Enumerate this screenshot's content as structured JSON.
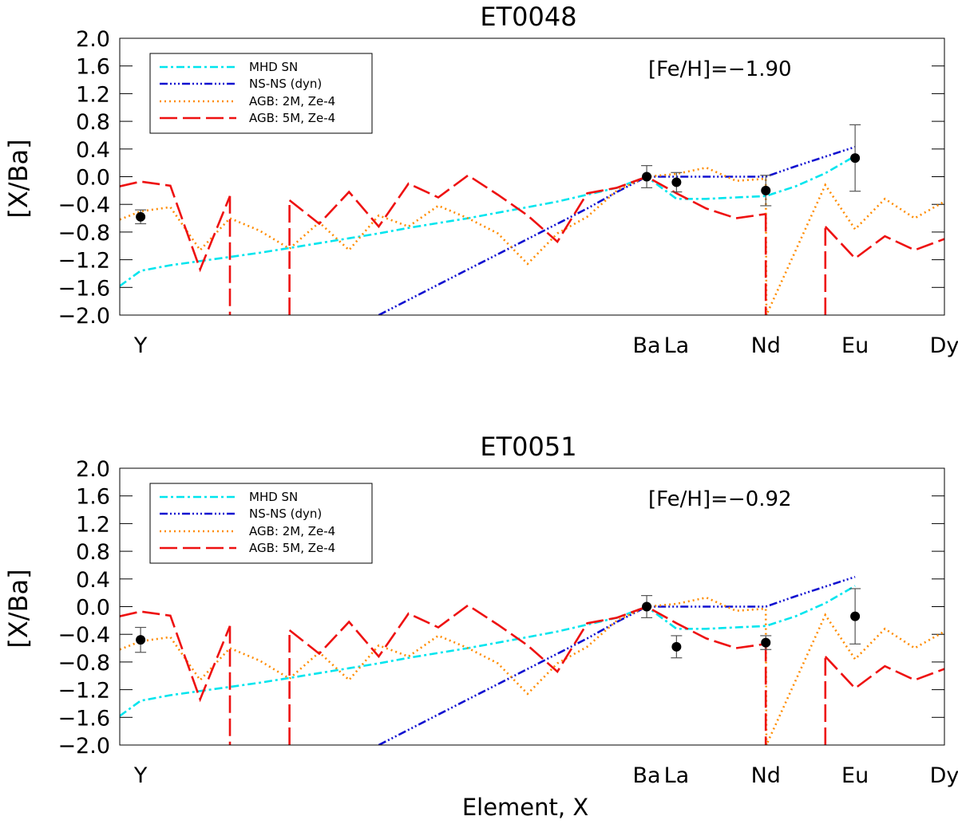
{
  "chart_data": [
    {
      "type": "line",
      "title": "ET0048",
      "ylabel": "[X/Ba]",
      "xlabel": "",
      "annotation": "[Fe/H]=−1.90",
      "ylim": [
        -2.0,
        2.0
      ],
      "yticks": [
        "2.0",
        "1.6",
        "1.2",
        "0.8",
        "0.4",
        "0.0",
        "−0.4",
        "−0.8",
        "−1.2",
        "−1.6",
        "−2.0"
      ],
      "xlim": [
        38.3,
        66.0
      ],
      "element_labels": [
        {
          "label": "Y",
          "z": 39
        },
        {
          "label": "Ba",
          "z": 56
        },
        {
          "label": "La",
          "z": 57
        },
        {
          "label": "Nd",
          "z": 60
        },
        {
          "label": "Eu",
          "z": 63
        },
        {
          "label": "Dy",
          "z": 66
        }
      ],
      "series": [
        {
          "name": "MHD SN",
          "color": "#00e5ee",
          "dash": "10 4 3 4",
          "x": [
            38.3,
            39,
            40,
            41,
            42,
            43,
            44,
            45,
            46,
            47,
            48,
            49,
            50,
            51,
            52,
            53,
            54,
            55,
            56,
            57,
            58,
            59,
            60,
            61,
            62,
            63
          ],
          "y": [
            -1.58,
            -1.36,
            -1.28,
            -1.22,
            -1.16,
            -1.1,
            -1.03,
            -0.96,
            -0.89,
            -0.82,
            -0.74,
            -0.67,
            -0.6,
            -0.52,
            -0.44,
            -0.36,
            -0.26,
            -0.16,
            0.0,
            -0.32,
            -0.32,
            -0.3,
            -0.28,
            -0.14,
            0.05,
            0.3
          ]
        },
        {
          "name": "NS-NS (dyn)",
          "color": "#1010d0",
          "dash": "10 3 2 3 2 3 2 3",
          "x": [
            47.0,
            48,
            49,
            50,
            51,
            52,
            53,
            54,
            55,
            56,
            57,
            58,
            59,
            60,
            61,
            62,
            63
          ],
          "y": [
            -2.0,
            -1.78,
            -1.56,
            -1.34,
            -1.12,
            -0.9,
            -0.68,
            -0.46,
            -0.22,
            0.0,
            0.0,
            0.0,
            0.0,
            0.0,
            0.15,
            0.29,
            0.43
          ]
        },
        {
          "name": "AGB: 2M, Ze-4",
          "color": "#ff8c00",
          "dash": "2 4",
          "x": [
            38.3,
            39,
            40,
            41,
            42,
            43,
            44,
            45,
            46,
            47,
            48,
            49,
            50,
            51,
            52,
            53,
            54,
            55,
            56,
            57,
            58,
            59,
            60,
            60.02,
            62,
            63,
            64,
            65,
            66
          ],
          "y": [
            -0.62,
            -0.5,
            -0.44,
            -1.06,
            -0.6,
            -0.78,
            -1.04,
            -0.66,
            -1.06,
            -0.56,
            -0.72,
            -0.42,
            -0.6,
            -0.82,
            -1.26,
            -0.82,
            -0.58,
            -0.2,
            0.0,
            0.04,
            0.13,
            -0.06,
            -0.03,
            -2.0,
            -0.12,
            -0.76,
            -0.32,
            -0.6,
            -0.36
          ]
        },
        {
          "name": "AGB: 5M, Ze-4",
          "color": "#ee1111",
          "dash": "22 7",
          "segments": [
            {
              "x": [
                38.3,
                39,
                40,
                41,
                42
              ],
              "y": [
                -0.14,
                -0.07,
                -0.13,
                -1.34,
                -0.28
              ]
            },
            {
              "x": [
                42,
                42
              ],
              "y": [
                -0.28,
                -2.0
              ]
            },
            {
              "x": [
                44,
                44
              ],
              "y": [
                -2.0,
                -0.34
              ]
            },
            {
              "x": [
                44,
                45,
                46,
                47,
                48,
                49,
                50,
                51,
                52,
                53,
                54,
                55,
                56,
                57,
                58,
                59,
                60
              ],
              "y": [
                -0.34,
                -0.68,
                -0.22,
                -0.72,
                -0.1,
                -0.3,
                0.02,
                -0.26,
                -0.56,
                -0.94,
                -0.24,
                -0.16,
                0.0,
                -0.24,
                -0.46,
                -0.6,
                -0.54
              ]
            },
            {
              "x": [
                60,
                60
              ],
              "y": [
                -0.54,
                -2.0
              ]
            },
            {
              "x": [
                62,
                62
              ],
              "y": [
                -2.0,
                -0.72
              ]
            },
            {
              "x": [
                62,
                63,
                64,
                65,
                66
              ],
              "y": [
                -0.72,
                -1.18,
                -0.86,
                -1.06,
                -0.9
              ]
            }
          ]
        }
      ],
      "observations": [
        {
          "element": "Y",
          "z": 39,
          "value": -0.58,
          "error": 0.1
        },
        {
          "element": "Ba",
          "z": 56,
          "value": 0.0,
          "error": 0.16
        },
        {
          "element": "La",
          "z": 57,
          "value": -0.08,
          "error": 0.14
        },
        {
          "element": "Nd",
          "z": 60,
          "value": -0.2,
          "error": 0.22
        },
        {
          "element": "Eu",
          "z": 63,
          "value": 0.27,
          "error": 0.48
        }
      ]
    },
    {
      "type": "line",
      "title": "ET0051",
      "ylabel": "[X/Ba]",
      "xlabel": "Element, X",
      "annotation": "[Fe/H]=−0.92",
      "ylim": [
        -2.0,
        2.0
      ],
      "yticks": [
        "2.0",
        "1.6",
        "1.2",
        "0.8",
        "0.4",
        "0.0",
        "−0.4",
        "−0.8",
        "−1.2",
        "−1.6",
        "−2.0"
      ],
      "xlim": [
        38.3,
        66.0
      ],
      "element_labels": [
        {
          "label": "Y",
          "z": 39
        },
        {
          "label": "Ba",
          "z": 56
        },
        {
          "label": "La",
          "z": 57
        },
        {
          "label": "Nd",
          "z": 60
        },
        {
          "label": "Eu",
          "z": 63
        },
        {
          "label": "Dy",
          "z": 66
        }
      ],
      "series": [
        {
          "name": "MHD SN",
          "color": "#00e5ee",
          "dash": "10 4 3 4",
          "x": [
            38.3,
            39,
            40,
            41,
            42,
            43,
            44,
            45,
            46,
            47,
            48,
            49,
            50,
            51,
            52,
            53,
            54,
            55,
            56,
            57,
            58,
            59,
            60,
            61,
            62,
            63
          ],
          "y": [
            -1.58,
            -1.36,
            -1.28,
            -1.22,
            -1.16,
            -1.1,
            -1.03,
            -0.96,
            -0.89,
            -0.82,
            -0.74,
            -0.67,
            -0.6,
            -0.52,
            -0.44,
            -0.36,
            -0.26,
            -0.16,
            0.0,
            -0.32,
            -0.32,
            -0.3,
            -0.28,
            -0.14,
            0.05,
            0.3
          ]
        },
        {
          "name": "NS-NS (dyn)",
          "color": "#1010d0",
          "dash": "10 3 2 3 2 3 2 3",
          "x": [
            47.0,
            48,
            49,
            50,
            51,
            52,
            53,
            54,
            55,
            56,
            57,
            58,
            59,
            60,
            61,
            62,
            63
          ],
          "y": [
            -2.0,
            -1.78,
            -1.56,
            -1.34,
            -1.12,
            -0.9,
            -0.68,
            -0.46,
            -0.22,
            0.0,
            0.0,
            0.0,
            0.0,
            0.0,
            0.15,
            0.29,
            0.43
          ]
        },
        {
          "name": "AGB: 2M, Ze-4",
          "color": "#ff8c00",
          "dash": "2 4",
          "x": [
            38.3,
            39,
            40,
            41,
            42,
            43,
            44,
            45,
            46,
            47,
            48,
            49,
            50,
            51,
            52,
            53,
            54,
            55,
            56,
            57,
            58,
            59,
            60,
            60.02,
            62,
            63,
            64,
            65,
            66
          ],
          "y": [
            -0.62,
            -0.5,
            -0.44,
            -1.06,
            -0.6,
            -0.78,
            -1.04,
            -0.66,
            -1.06,
            -0.56,
            -0.72,
            -0.42,
            -0.6,
            -0.82,
            -1.26,
            -0.82,
            -0.58,
            -0.2,
            0.0,
            0.04,
            0.13,
            -0.06,
            -0.03,
            -2.0,
            -0.12,
            -0.76,
            -0.32,
            -0.6,
            -0.36
          ]
        },
        {
          "name": "AGB: 5M, Ze-4",
          "color": "#ee1111",
          "dash": "22 7",
          "segments": [
            {
              "x": [
                38.3,
                39,
                40,
                41,
                42
              ],
              "y": [
                -0.14,
                -0.07,
                -0.13,
                -1.34,
                -0.28
              ]
            },
            {
              "x": [
                42,
                42
              ],
              "y": [
                -0.28,
                -2.0
              ]
            },
            {
              "x": [
                44,
                44
              ],
              "y": [
                -2.0,
                -0.34
              ]
            },
            {
              "x": [
                44,
                45,
                46,
                47,
                48,
                49,
                50,
                51,
                52,
                53,
                54,
                55,
                56,
                57,
                58,
                59,
                60
              ],
              "y": [
                -0.34,
                -0.68,
                -0.22,
                -0.72,
                -0.1,
                -0.3,
                0.02,
                -0.26,
                -0.56,
                -0.94,
                -0.24,
                -0.16,
                0.0,
                -0.24,
                -0.46,
                -0.6,
                -0.54
              ]
            },
            {
              "x": [
                60,
                60
              ],
              "y": [
                -0.54,
                -2.0
              ]
            },
            {
              "x": [
                62,
                62
              ],
              "y": [
                -2.0,
                -0.72
              ]
            },
            {
              "x": [
                62,
                63,
                64,
                65,
                66
              ],
              "y": [
                -0.72,
                -1.18,
                -0.86,
                -1.06,
                -0.9
              ]
            }
          ]
        }
      ],
      "observations": [
        {
          "element": "Y",
          "z": 39,
          "value": -0.48,
          "error": 0.18
        },
        {
          "element": "Ba",
          "z": 56,
          "value": 0.0,
          "error": 0.16
        },
        {
          "element": "La",
          "z": 57,
          "value": -0.58,
          "error": 0.16
        },
        {
          "element": "Nd",
          "z": 60,
          "value": -0.52,
          "error": 0.1
        },
        {
          "element": "Eu",
          "z": 63,
          "value": -0.14,
          "error": 0.4
        }
      ]
    }
  ]
}
